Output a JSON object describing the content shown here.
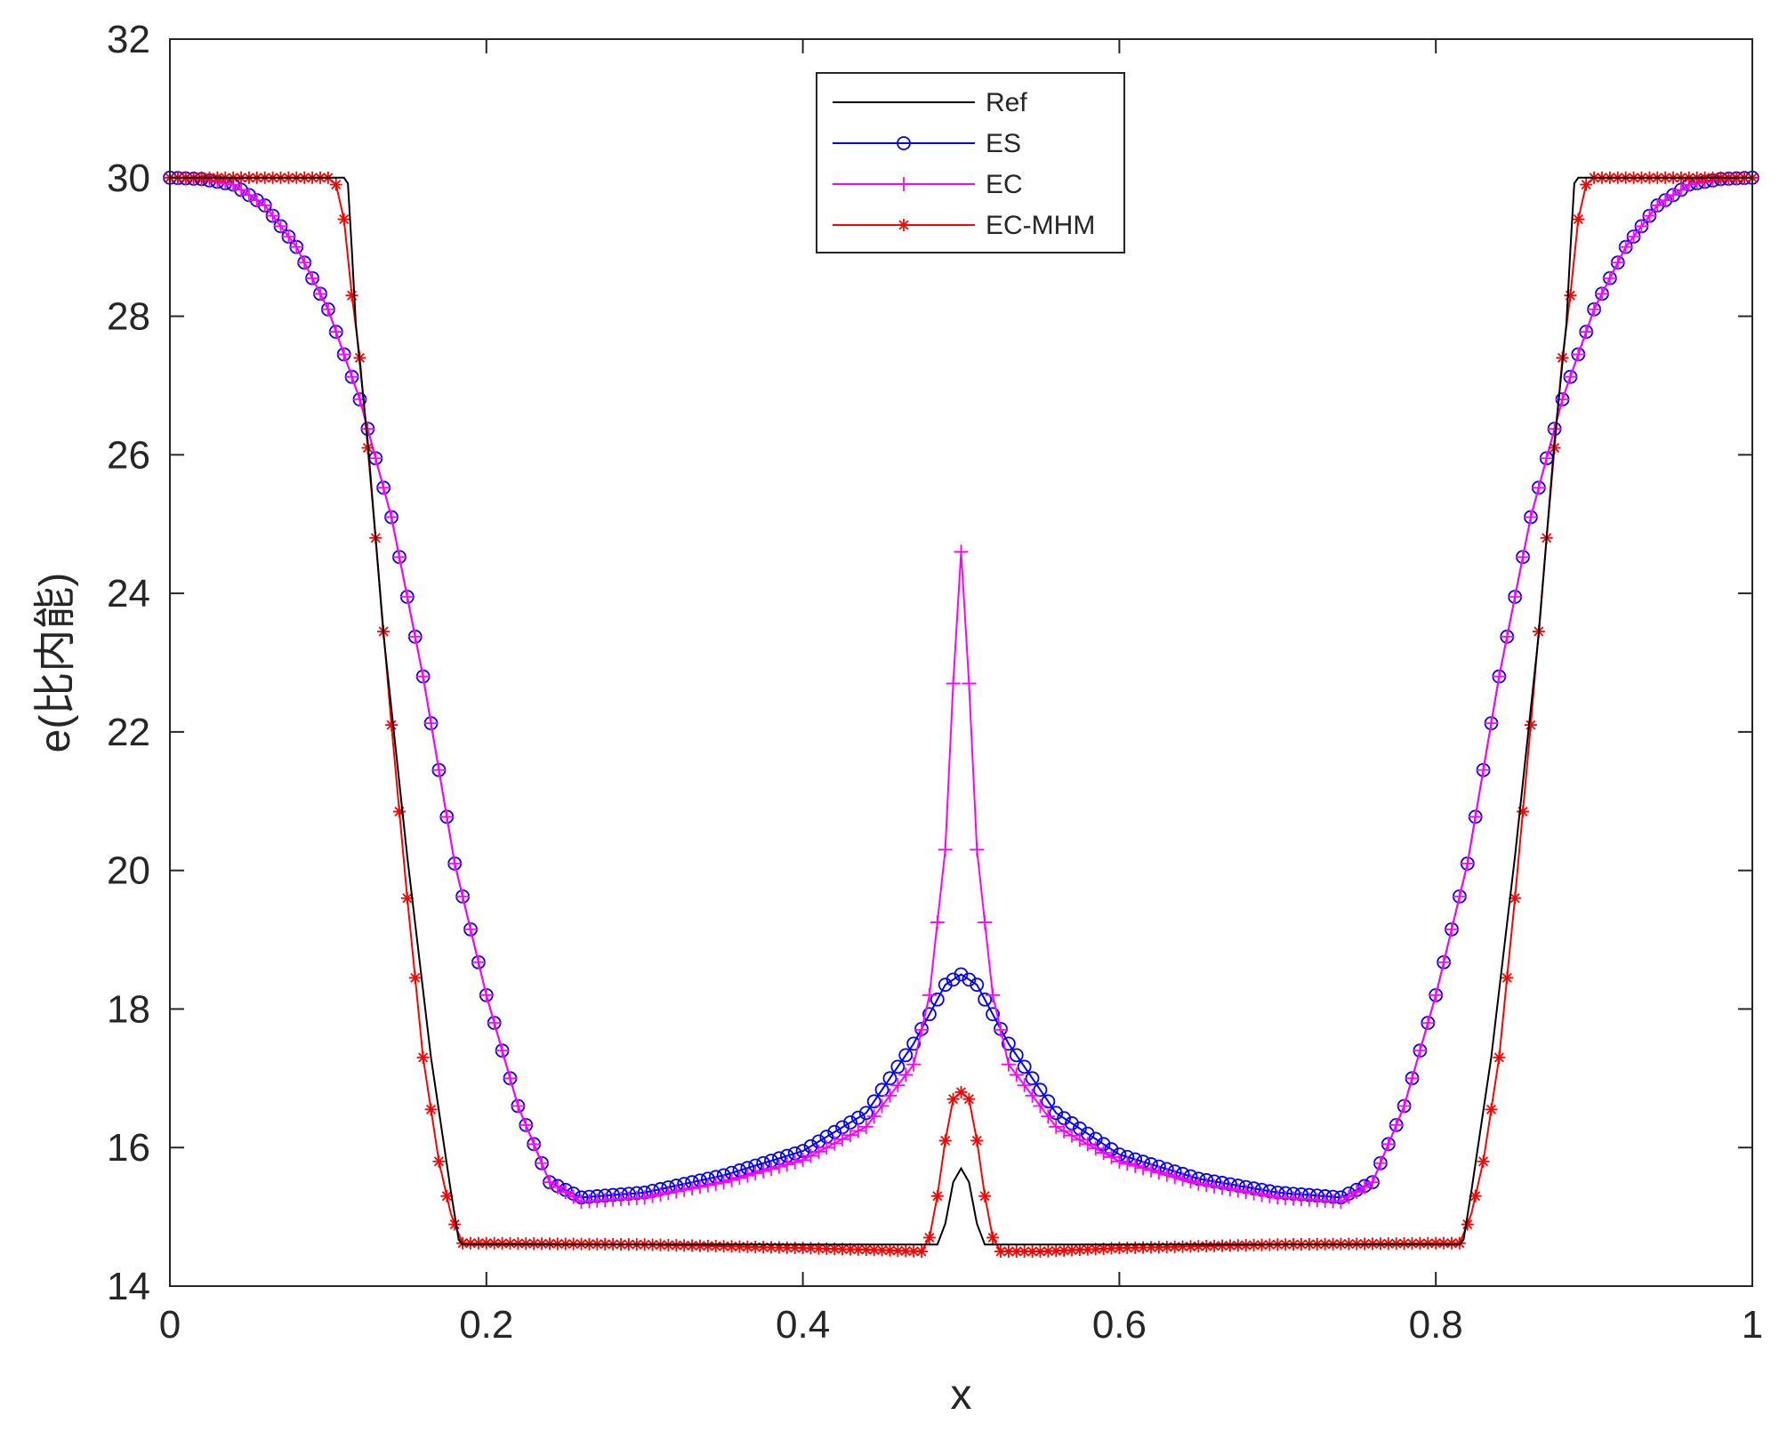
{
  "chart_data": {
    "type": "line",
    "title": "",
    "xlabel": "x",
    "ylabel": "e(比内能)",
    "xlim": [
      0,
      1
    ],
    "ylim": [
      14,
      32
    ],
    "xticks": [
      0,
      0.2,
      0.4,
      0.6,
      0.8,
      1
    ],
    "xtick_labels": [
      "0",
      "0.2",
      "0.4",
      "0.6",
      "0.8",
      "1"
    ],
    "yticks": [
      14,
      16,
      18,
      20,
      22,
      24,
      26,
      28,
      30,
      32
    ],
    "ytick_labels": [
      "14",
      "16",
      "18",
      "20",
      "22",
      "24",
      "26",
      "28",
      "30",
      "32"
    ],
    "grid": false,
    "legend_position": "top-center",
    "colors": {
      "Ref": "#000000",
      "ES": "#0000ff",
      "EC": "#ff00ff",
      "EC-MHM": "#ff0000"
    },
    "series": [
      {
        "name": "Ref",
        "color": "#000000",
        "marker": "none",
        "x": [
          0,
          0.105,
          0.11,
          0.113,
          0.117,
          0.125,
          0.135,
          0.15,
          0.165,
          0.178,
          0.183,
          0.2,
          0.3,
          0.4,
          0.485,
          0.49,
          0.495,
          0.5,
          0.505,
          0.51,
          0.515,
          0.6,
          0.7,
          0.8,
          0.817,
          0.822,
          0.835,
          0.85,
          0.865,
          0.875,
          0.883,
          0.887,
          0.89,
          0.895,
          1
        ],
        "y": [
          30,
          30,
          30,
          29.9,
          28,
          26.2,
          23.4,
          20.2,
          17.3,
          15.3,
          14.6,
          14.6,
          14.6,
          14.6,
          14.6,
          14.9,
          15.5,
          15.7,
          15.5,
          14.9,
          14.6,
          14.6,
          14.6,
          14.6,
          14.6,
          15.3,
          17.3,
          20.2,
          23.4,
          26.2,
          28,
          29.9,
          30,
          30,
          30
        ]
      },
      {
        "name": "ES",
        "color": "#0000ff",
        "marker": "circle",
        "x": [
          0,
          0.02,
          0.04,
          0.06,
          0.08,
          0.1,
          0.12,
          0.14,
          0.16,
          0.18,
          0.2,
          0.22,
          0.24,
          0.26,
          0.3,
          0.35,
          0.4,
          0.44,
          0.47,
          0.49,
          0.5,
          0.51,
          0.53,
          0.56,
          0.6,
          0.65,
          0.7,
          0.74,
          0.76,
          0.78,
          0.8,
          0.82,
          0.84,
          0.86,
          0.88,
          0.9,
          0.92,
          0.94,
          0.96,
          0.98,
          1
        ],
        "y": [
          30,
          29.98,
          29.9,
          29.6,
          29,
          28.1,
          26.8,
          25.1,
          22.8,
          20.1,
          18.2,
          16.6,
          15.5,
          15.28,
          15.35,
          15.6,
          15.95,
          16.5,
          17.5,
          18.35,
          18.5,
          18.35,
          17.5,
          16.5,
          15.9,
          15.55,
          15.35,
          15.28,
          15.5,
          16.6,
          18.2,
          20.1,
          22.8,
          25.1,
          26.8,
          28.1,
          29,
          29.6,
          29.9,
          29.98,
          30
        ]
      },
      {
        "name": "EC",
        "color": "#ff00ff",
        "marker": "plus",
        "x": [
          0,
          0.02,
          0.04,
          0.06,
          0.08,
          0.1,
          0.12,
          0.14,
          0.16,
          0.18,
          0.2,
          0.22,
          0.24,
          0.26,
          0.3,
          0.35,
          0.4,
          0.44,
          0.47,
          0.48,
          0.49,
          0.495,
          0.5,
          0.505,
          0.51,
          0.52,
          0.53,
          0.56,
          0.6,
          0.65,
          0.7,
          0.74,
          0.76,
          0.78,
          0.8,
          0.82,
          0.84,
          0.86,
          0.88,
          0.9,
          0.92,
          0.94,
          0.96,
          0.98,
          1
        ],
        "y": [
          30,
          29.98,
          29.9,
          29.6,
          29,
          28.1,
          26.8,
          25.1,
          22.8,
          20.1,
          18.2,
          16.6,
          15.5,
          15.22,
          15.28,
          15.5,
          15.82,
          16.3,
          17.2,
          18.2,
          20.3,
          22.7,
          24.6,
          22.7,
          20.3,
          18.2,
          17.2,
          16.3,
          15.8,
          15.48,
          15.28,
          15.22,
          15.5,
          16.6,
          18.2,
          20.1,
          22.8,
          25.1,
          26.8,
          28.1,
          29,
          29.6,
          29.9,
          29.98,
          30
        ]
      },
      {
        "name": "EC-MHM",
        "color": "#ff0000",
        "marker": "asterisk",
        "x": [
          0,
          0.05,
          0.1,
          0.105,
          0.11,
          0.115,
          0.12,
          0.13,
          0.14,
          0.15,
          0.16,
          0.17,
          0.178,
          0.185,
          0.2,
          0.3,
          0.4,
          0.45,
          0.475,
          0.48,
          0.485,
          0.49,
          0.495,
          0.5,
          0.505,
          0.51,
          0.515,
          0.52,
          0.525,
          0.55,
          0.6,
          0.7,
          0.8,
          0.815,
          0.822,
          0.83,
          0.84,
          0.85,
          0.86,
          0.87,
          0.88,
          0.885,
          0.89,
          0.895,
          0.9,
          0.95,
          1
        ],
        "y": [
          30,
          30,
          30,
          29.9,
          29.4,
          28.3,
          27.4,
          24.8,
          22.1,
          19.6,
          17.3,
          15.8,
          15,
          14.62,
          14.62,
          14.6,
          14.55,
          14.52,
          14.5,
          14.7,
          15.3,
          16.1,
          16.7,
          16.8,
          16.7,
          16.1,
          15.3,
          14.7,
          14.5,
          14.5,
          14.55,
          14.6,
          14.62,
          14.62,
          15,
          15.8,
          17.3,
          19.6,
          22.1,
          24.8,
          27.4,
          28.3,
          29.4,
          29.9,
          30,
          30,
          30
        ]
      }
    ]
  }
}
